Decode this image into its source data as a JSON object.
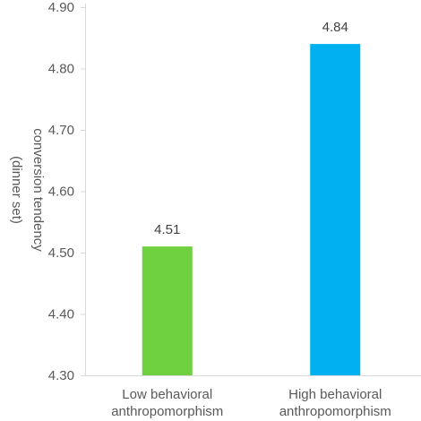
{
  "chart_data": {
    "type": "bar",
    "categories": [
      [
        "Low behavioral",
        "anthropomorphism"
      ],
      [
        "High behavioral",
        "anthropomorphism"
      ]
    ],
    "values": [
      4.51,
      4.84
    ],
    "data_labels": [
      "4.51",
      "4.84"
    ],
    "bar_colors": [
      "#6fd040",
      "#00b0f0"
    ],
    "ylabel": [
      "conversion tendency",
      "(dinner set)"
    ],
    "ylim": [
      4.3,
      4.9
    ],
    "yticks": [
      4.3,
      4.4,
      4.5,
      4.6,
      4.7,
      4.8,
      4.9
    ],
    "ytick_labels": [
      "4.30",
      "4.40",
      "4.50",
      "4.60",
      "4.70",
      "4.80",
      "4.90"
    ],
    "grid": false,
    "legend": "none"
  }
}
